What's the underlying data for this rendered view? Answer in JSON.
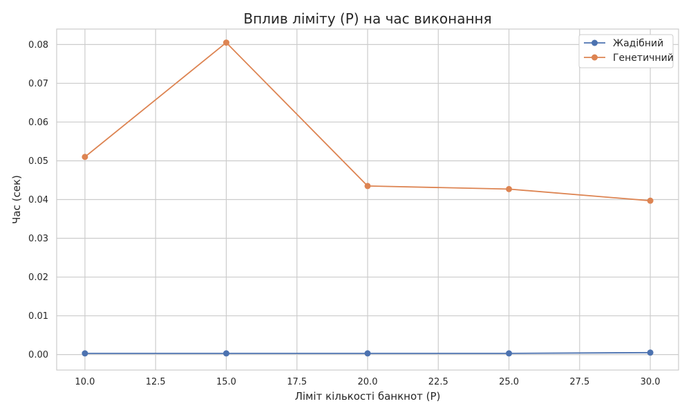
{
  "chart_data": {
    "type": "line",
    "title": "Вплив ліміту (P) на час виконання",
    "xlabel": "Ліміт кількості банкнот (P)",
    "ylabel": "Час (сек)",
    "x": [
      10,
      15,
      20,
      25,
      30
    ],
    "xlim": [
      9,
      31
    ],
    "ylim": [
      -0.004,
      0.084
    ],
    "xticks": [
      "10.0",
      "12.5",
      "15.0",
      "17.5",
      "20.0",
      "22.5",
      "25.0",
      "27.5",
      "30.0"
    ],
    "xtick_values": [
      10,
      12.5,
      15,
      17.5,
      20,
      22.5,
      25,
      27.5,
      30
    ],
    "yticks": [
      "0.00",
      "0.01",
      "0.02",
      "0.03",
      "0.04",
      "0.05",
      "0.06",
      "0.07",
      "0.08"
    ],
    "ytick_values": [
      0,
      0.01,
      0.02,
      0.03,
      0.04,
      0.05,
      0.06,
      0.07,
      0.08
    ],
    "grid": true,
    "legend_position": "top-right",
    "series": [
      {
        "name": "Жадібний",
        "color": "#4c72b0",
        "marker": "circle",
        "values": [
          0.0003,
          0.0003,
          0.0003,
          0.0003,
          0.0005
        ]
      },
      {
        "name": "Генетичний",
        "color": "#dd8452",
        "marker": "circle",
        "values": [
          0.051,
          0.0805,
          0.0435,
          0.0427,
          0.0397
        ]
      }
    ]
  }
}
